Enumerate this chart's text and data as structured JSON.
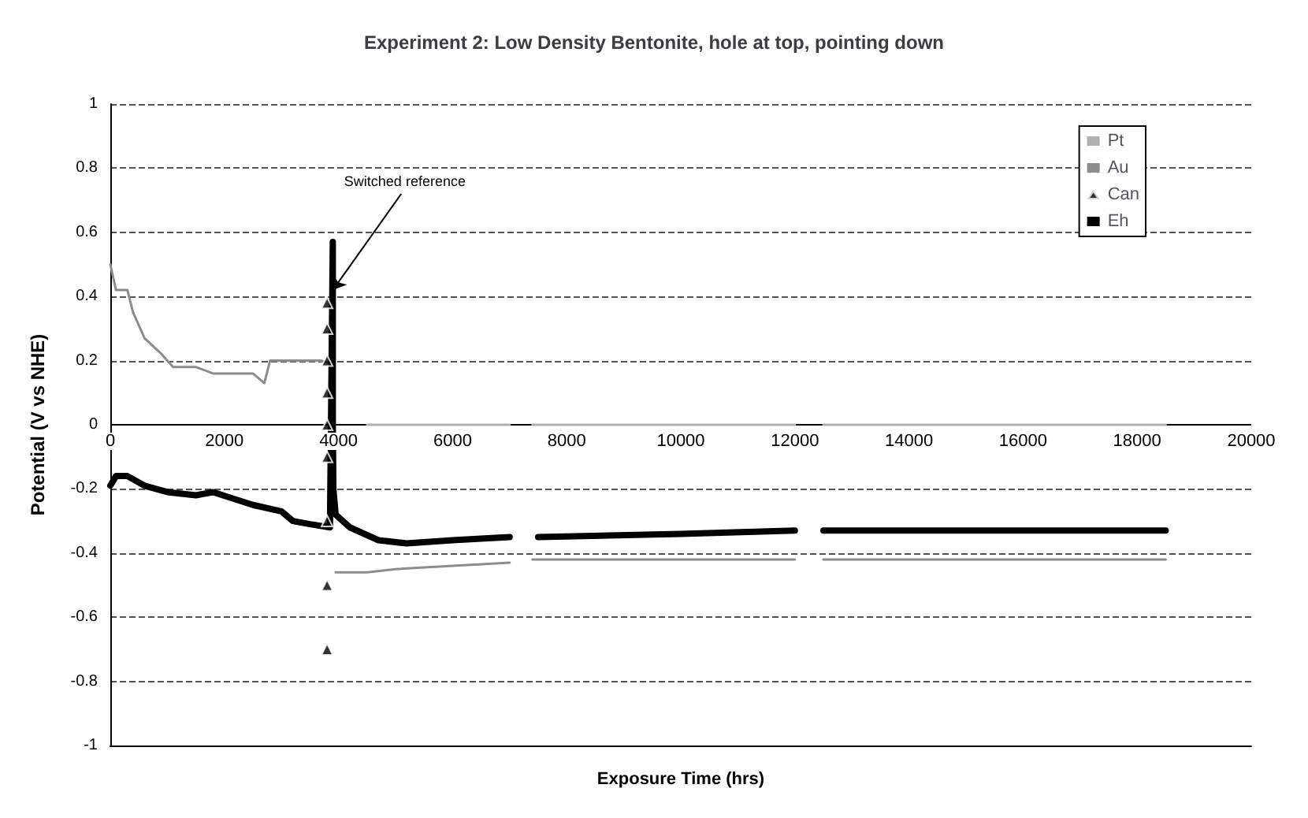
{
  "chart_data": {
    "type": "line",
    "title": "Experiment 2: Low Density Bentonite, hole at top, pointing down",
    "xlabel": "Exposure Time (hrs)",
    "ylabel": "Potential (V vs NHE)",
    "xlim": [
      0,
      20000
    ],
    "xticks": [
      0,
      2000,
      4000,
      6000,
      8000,
      10000,
      12000,
      14000,
      16000,
      18000,
      20000
    ],
    "ylim": [
      -1,
      1
    ],
    "yticks": [
      -1,
      -0.8,
      -0.6,
      -0.4,
      -0.2,
      0,
      0.2,
      0.4,
      0.6,
      0.8,
      1
    ],
    "grid": "y",
    "legend": "top right",
    "annotations": [
      {
        "text": "Switched reference",
        "x": 3800,
        "y": 0.42
      }
    ],
    "series": [
      {
        "name": "Pt",
        "color": "#b0b0b0",
        "x": [
          4500,
          7000,
          7200,
          7400,
          12000,
          12200,
          12500,
          18500
        ],
        "values": [
          0,
          0,
          null,
          0,
          0,
          null,
          0,
          0
        ]
      },
      {
        "name": "Au",
        "color": "#8c8c8c",
        "x": [
          0,
          100,
          300,
          400,
          600,
          900,
          1100,
          1500,
          1800,
          2200,
          2500,
          2700,
          2800,
          3200,
          3700,
          3880,
          3920,
          3950,
          4500,
          5000,
          6000,
          7000,
          7200,
          7400,
          12000,
          12200,
          12500,
          18500
        ],
        "values": [
          0.5,
          0.42,
          0.42,
          0.35,
          0.27,
          0.22,
          0.18,
          0.18,
          0.16,
          0.16,
          0.16,
          0.13,
          0.2,
          0.2,
          0.2,
          0.19,
          null,
          -0.46,
          -0.46,
          -0.45,
          -0.44,
          -0.43,
          null,
          -0.42,
          -0.42,
          null,
          -0.42,
          -0.42
        ]
      },
      {
        "name": "Can",
        "color": "#000000",
        "type": "scatter",
        "marker": "triangle",
        "x": [
          3800,
          3800,
          3800,
          3800,
          3800,
          3800,
          3800,
          3800,
          3800
        ],
        "values": [
          0.38,
          0.3,
          0.2,
          0.1,
          0,
          -0.1,
          -0.3,
          -0.5,
          -0.7
        ]
      },
      {
        "name": "Eh",
        "color": "#000000",
        "x": [
          0,
          100,
          300,
          600,
          1000,
          1500,
          1800,
          2500,
          3000,
          3200,
          3500,
          3850,
          3900,
          3900,
          3900,
          3910,
          3950,
          4200,
          4700,
          5200,
          6000,
          7000,
          7200,
          7500,
          10000,
          12000,
          12200,
          12500,
          18500
        ],
        "values": [
          -0.19,
          -0.16,
          -0.16,
          -0.19,
          -0.21,
          -0.22,
          -0.21,
          -0.25,
          -0.27,
          -0.3,
          -0.31,
          -0.32,
          0.57,
          0.3,
          0,
          -0.2,
          -0.28,
          -0.32,
          -0.36,
          -0.37,
          -0.36,
          -0.35,
          null,
          -0.35,
          -0.34,
          -0.33,
          null,
          -0.33,
          -0.33
        ]
      }
    ]
  }
}
